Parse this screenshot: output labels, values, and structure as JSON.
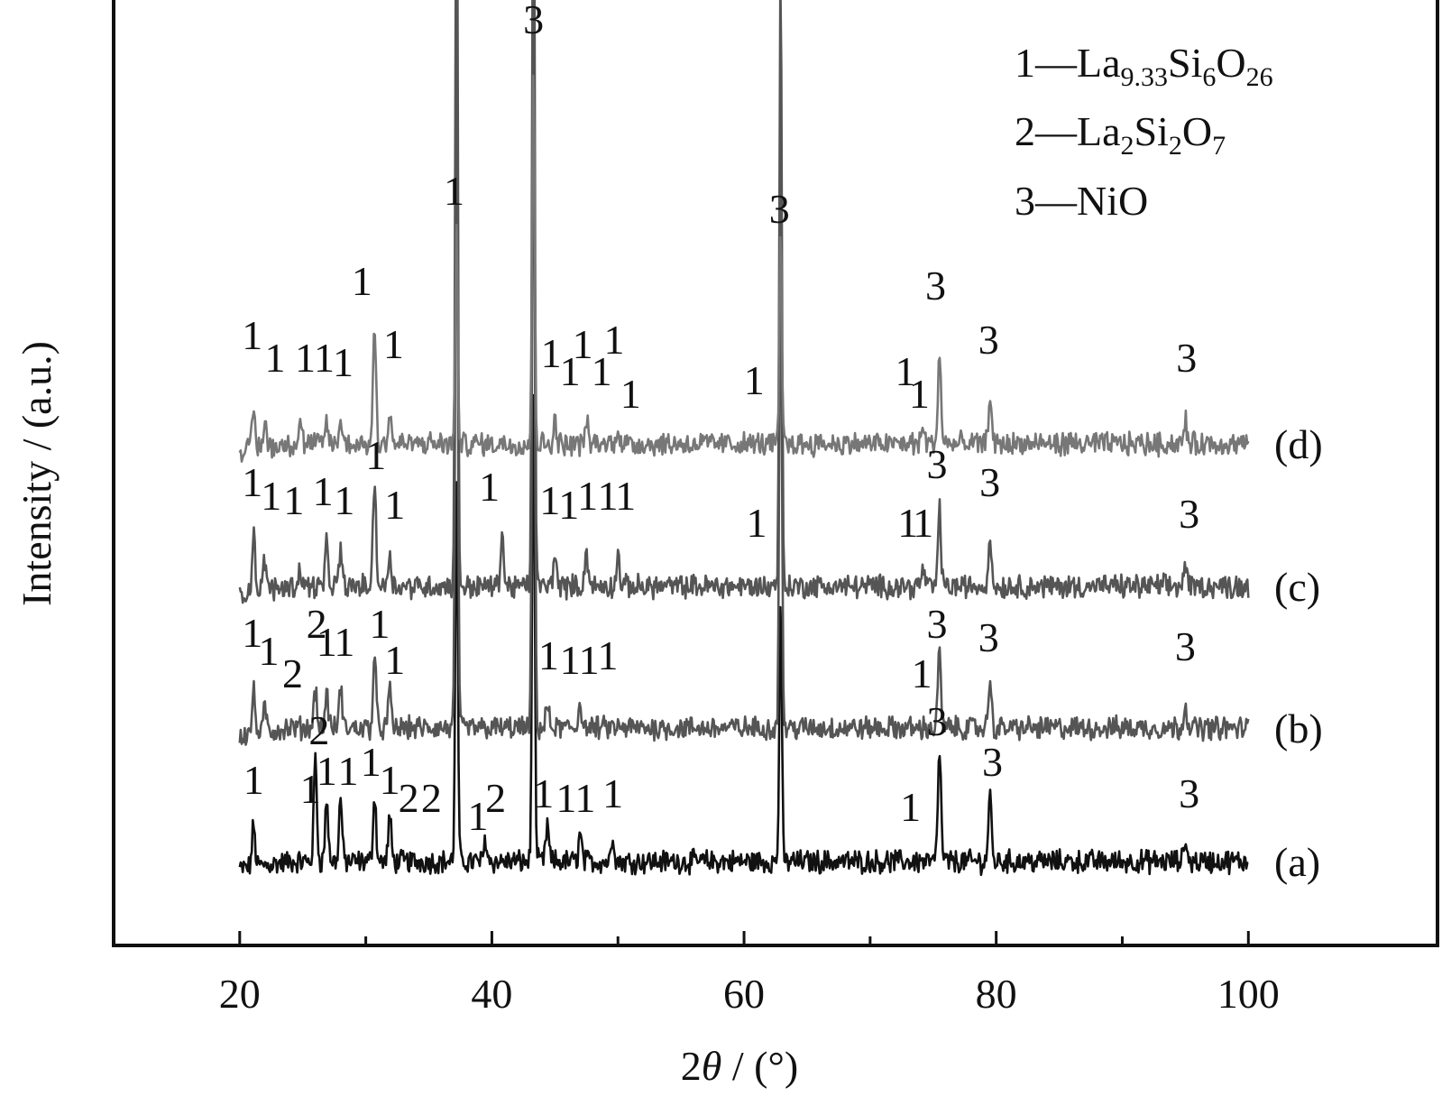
{
  "chart_data": {
    "type": "line",
    "xlabel_prefix": "2",
    "xlabel_symbol": "θ",
    "xlabel_suffix": " / (°)",
    "ylabel": "Intensity / (a.u.)",
    "xlim": [
      10,
      115
    ],
    "xticks": [
      20,
      40,
      60,
      80,
      100
    ],
    "grid": false,
    "legend_position": "top-right",
    "legend": [
      {
        "prefix": "1—La",
        "parts": [
          {
            "sub": "9.33"
          },
          {
            "text": "Si"
          },
          {
            "sub": "6"
          },
          {
            "text": "O"
          },
          {
            "sub": "26"
          }
        ]
      },
      {
        "prefix": "2—La",
        "parts": [
          {
            "sub": "2"
          },
          {
            "text": "Si"
          },
          {
            "sub": "2"
          },
          {
            "text": "O"
          },
          {
            "sub": "7"
          }
        ]
      },
      {
        "prefix": "3—NiO",
        "parts": []
      }
    ],
    "series": [
      {
        "name": "(a)",
        "color": "#111111",
        "peaks": [
          [
            21.1,
            45
          ],
          [
            26,
            115
          ],
          [
            26.9,
            70
          ],
          [
            28,
            70
          ],
          [
            30.7,
            75
          ],
          [
            31.9,
            50
          ],
          [
            37.2,
            420
          ],
          [
            39.5,
            25
          ],
          [
            43.3,
            540
          ],
          [
            44.4,
            40
          ],
          [
            47,
            30
          ],
          [
            49.6,
            30
          ],
          [
            62.9,
            290
          ],
          [
            75.5,
            125
          ],
          [
            79.5,
            75
          ],
          [
            95,
            25
          ]
        ],
        "labels": [
          {
            "text": "1",
            "x": 21.1,
            "h": 75
          },
          {
            "text": "2",
            "x": 26.3,
            "h": 130
          },
          {
            "text": "1",
            "x": 25.6,
            "h": 65
          },
          {
            "text": "1",
            "x": 26.9,
            "h": 85
          },
          {
            "text": "1",
            "x": 28.6,
            "h": 85
          },
          {
            "text": "1",
            "x": 30.4,
            "h": 95
          },
          {
            "text": "1",
            "x": 31.9,
            "h": 75
          },
          {
            "text": "2",
            "x": 33.4,
            "h": 55
          },
          {
            "text": "2",
            "x": 35.2,
            "h": 55
          },
          {
            "text": "1",
            "x": 38.9,
            "h": 35
          },
          {
            "text": "2",
            "x": 40.3,
            "h": 55
          },
          {
            "text": "1",
            "x": 44.1,
            "h": 60
          },
          {
            "text": "1",
            "x": 45.9,
            "h": 55
          },
          {
            "text": "1",
            "x": 47.4,
            "h": 55
          },
          {
            "text": "1",
            "x": 49.6,
            "h": 60
          },
          {
            "text": "3",
            "x": 75.3,
            "h": 140
          },
          {
            "text": "3",
            "x": 79.7,
            "h": 95
          },
          {
            "text": "1",
            "x": 73.2,
            "h": 45
          },
          {
            "text": "3",
            "x": 95.3,
            "h": 60
          }
        ]
      },
      {
        "name": "(b)",
        "color": "#555555",
        "peaks": [
          [
            21.1,
            45
          ],
          [
            22,
            25
          ],
          [
            26,
            45
          ],
          [
            26.9,
            40
          ],
          [
            28,
            45
          ],
          [
            30.7,
            80
          ],
          [
            31.9,
            40
          ],
          [
            37.2,
            720
          ],
          [
            43.3,
            820
          ],
          [
            44.4,
            25
          ],
          [
            47,
            30
          ],
          [
            62.9,
            580
          ],
          [
            75.5,
            85
          ],
          [
            79.5,
            55
          ],
          [
            95,
            30
          ]
        ],
        "labels": [
          {
            "text": "1",
            "x": 21,
            "h": 90
          },
          {
            "text": "1",
            "x": 22.3,
            "h": 70
          },
          {
            "text": "2",
            "x": 24.2,
            "h": 45
          },
          {
            "text": "2",
            "x": 26.1,
            "h": 100
          },
          {
            "text": "1",
            "x": 26.9,
            "h": 80
          },
          {
            "text": "1",
            "x": 28.3,
            "h": 80
          },
          {
            "text": "1",
            "x": 31.1,
            "h": 100
          },
          {
            "text": "1",
            "x": 32.3,
            "h": 60
          },
          {
            "text": "1",
            "x": 44.5,
            "h": 65
          },
          {
            "text": "1",
            "x": 46.2,
            "h": 60
          },
          {
            "text": "1",
            "x": 47.7,
            "h": 60
          },
          {
            "text": "1",
            "x": 49.2,
            "h": 65
          },
          {
            "text": "3",
            "x": 75.3,
            "h": 100
          },
          {
            "text": "3",
            "x": 79.4,
            "h": 85
          },
          {
            "text": "1",
            "x": 74.1,
            "h": 45
          },
          {
            "text": "3",
            "x": 95,
            "h": 75
          }
        ]
      },
      {
        "name": "(c)",
        "color": "#555555",
        "peaks": [
          [
            21.1,
            65
          ],
          [
            22,
            35
          ],
          [
            24.8,
            20
          ],
          [
            26.9,
            45
          ],
          [
            28,
            40
          ],
          [
            30.7,
            120
          ],
          [
            31.9,
            40
          ],
          [
            37.2,
            880
          ],
          [
            40.8,
            60
          ],
          [
            43.3,
            960
          ],
          [
            45,
            40
          ],
          [
            47.5,
            40
          ],
          [
            50,
            35
          ],
          [
            62.9,
            680
          ],
          [
            74.2,
            20
          ],
          [
            75.5,
            85
          ],
          [
            79.5,
            55
          ],
          [
            95,
            25
          ]
        ],
        "labels": [
          {
            "text": "1",
            "x": 21,
            "h": 100
          },
          {
            "text": "1",
            "x": 22.5,
            "h": 85
          },
          {
            "text": "1",
            "x": 24.3,
            "h": 80
          },
          {
            "text": "1",
            "x": 26.6,
            "h": 90
          },
          {
            "text": "1",
            "x": 28.3,
            "h": 80
          },
          {
            "text": "1",
            "x": 30.8,
            "h": 130
          },
          {
            "text": "1",
            "x": 32.3,
            "h": 75
          },
          {
            "text": "1",
            "x": 39.8,
            "h": 95
          },
          {
            "text": "1",
            "x": 44.6,
            "h": 80
          },
          {
            "text": "1",
            "x": 46.1,
            "h": 75
          },
          {
            "text": "1",
            "x": 47.6,
            "h": 85
          },
          {
            "text": "1",
            "x": 49.2,
            "h": 85
          },
          {
            "text": "1",
            "x": 50.6,
            "h": 85
          },
          {
            "text": "1",
            "x": 61,
            "h": 55
          },
          {
            "text": "1",
            "x": 73,
            "h": 55
          },
          {
            "text": "1",
            "x": 74.2,
            "h": 55
          },
          {
            "text": "3",
            "x": 75.3,
            "h": 120
          },
          {
            "text": "3",
            "x": 79.5,
            "h": 100
          },
          {
            "text": "3",
            "x": 95.3,
            "h": 65
          }
        ]
      },
      {
        "name": "(d)",
        "color": "#777777",
        "peaks": [
          [
            21.1,
            45
          ],
          [
            22,
            30
          ],
          [
            24.8,
            25
          ],
          [
            26.9,
            25
          ],
          [
            28,
            25
          ],
          [
            30.7,
            130
          ],
          [
            31.9,
            35
          ],
          [
            37.2,
            230
          ],
          [
            43.3,
            420
          ],
          [
            45,
            25
          ],
          [
            47.5,
            25
          ],
          [
            50,
            20
          ],
          [
            62.9,
            225
          ],
          [
            74.2,
            20
          ],
          [
            75.5,
            100
          ],
          [
            79.5,
            55
          ],
          [
            95,
            25
          ]
        ],
        "labels": [
          {
            "text": "1",
            "x": 21,
            "h": 105
          },
          {
            "text": "1",
            "x": 22.8,
            "h": 80
          },
          {
            "text": "1",
            "x": 25.2,
            "h": 80
          },
          {
            "text": "1",
            "x": 26.7,
            "h": 80
          },
          {
            "text": "1",
            "x": 28.2,
            "h": 75
          },
          {
            "text": "1",
            "x": 29.7,
            "h": 165
          },
          {
            "text": "1",
            "x": 32.2,
            "h": 95
          },
          {
            "text": "1",
            "x": 37,
            "h": 265
          },
          {
            "text": "3",
            "x": 43.3,
            "h": 455
          },
          {
            "text": "1",
            "x": 44.7,
            "h": 85
          },
          {
            "text": "1",
            "x": 46.2,
            "h": 65
          },
          {
            "text": "1",
            "x": 47.2,
            "h": 95
          },
          {
            "text": "1",
            "x": 48.7,
            "h": 65
          },
          {
            "text": "1",
            "x": 49.7,
            "h": 100
          },
          {
            "text": "1",
            "x": 51,
            "h": 40
          },
          {
            "text": "1",
            "x": 60.8,
            "h": 55
          },
          {
            "text": "3",
            "x": 62.8,
            "h": 245
          },
          {
            "text": "1",
            "x": 72.8,
            "h": 65
          },
          {
            "text": "1",
            "x": 73.9,
            "h": 40
          },
          {
            "text": "3",
            "x": 75.2,
            "h": 160
          },
          {
            "text": "3",
            "x": 79.4,
            "h": 100
          },
          {
            "text": "3",
            "x": 95.1,
            "h": 80
          }
        ]
      }
    ]
  }
}
